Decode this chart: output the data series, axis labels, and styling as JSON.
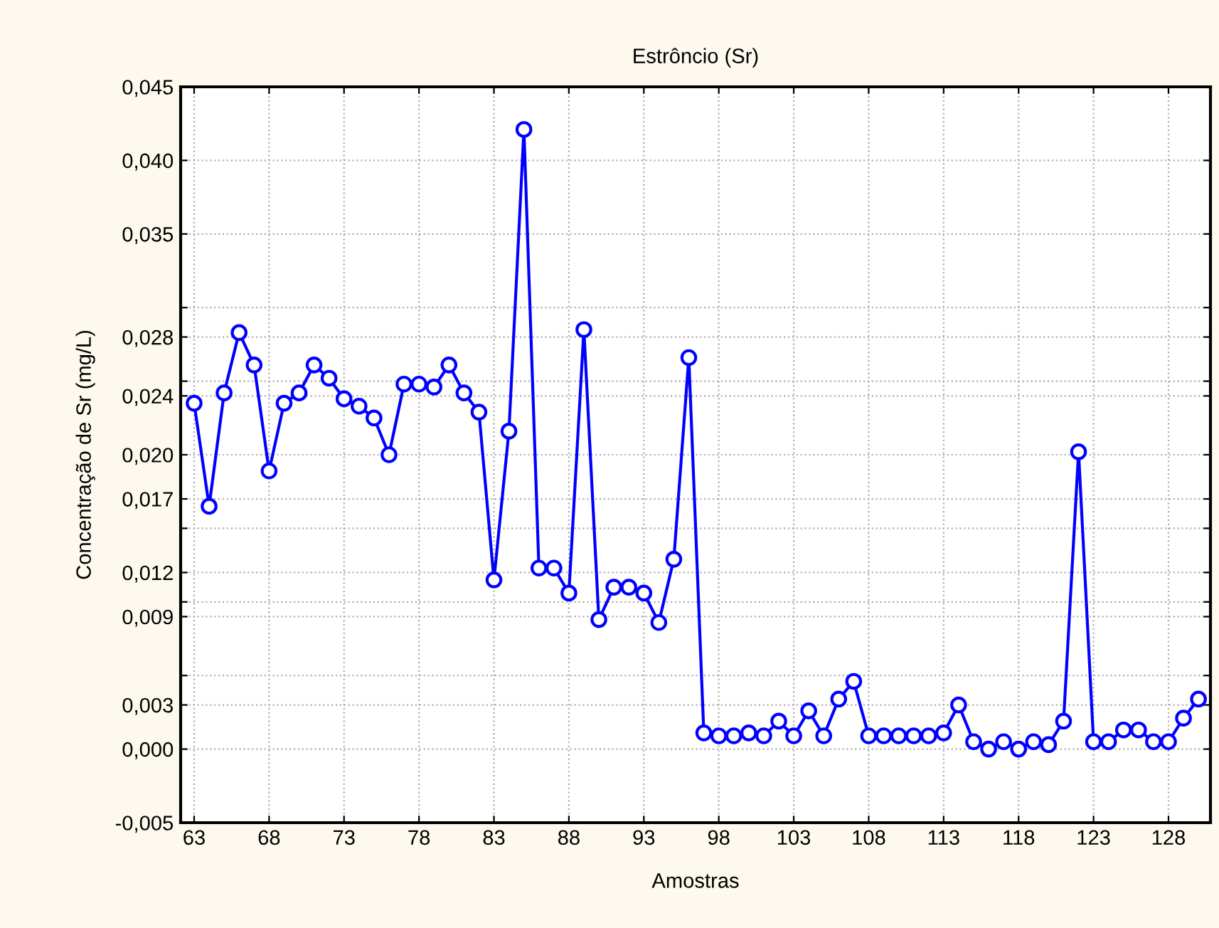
{
  "chart_data": {
    "type": "line",
    "title": "Estrôncio (Sr)",
    "xlabel": "Amostras",
    "ylabel": "Concentração de Sr (mg/L)",
    "x": [
      63,
      64,
      65,
      66,
      67,
      68,
      69,
      70,
      71,
      72,
      73,
      74,
      75,
      76,
      77,
      78,
      79,
      80,
      81,
      82,
      83,
      84,
      85,
      86,
      87,
      88,
      89,
      90,
      91,
      92,
      93,
      94,
      95,
      96,
      97,
      98,
      99,
      100,
      101,
      102,
      103,
      104,
      105,
      106,
      107,
      108,
      109,
      110,
      111,
      112,
      113,
      114,
      115,
      116,
      117,
      118,
      119,
      120,
      121,
      122,
      123,
      124,
      125,
      126,
      127,
      128,
      129,
      130
    ],
    "series": [
      {
        "color": "#0000ff",
        "values": [
          0.0235,
          0.0165,
          0.0242,
          0.0283,
          0.0261,
          0.0189,
          0.0235,
          0.0242,
          0.0261,
          0.0252,
          0.0238,
          0.0233,
          0.0225,
          0.02,
          0.0248,
          0.0248,
          0.0246,
          0.0261,
          0.0242,
          0.0229,
          0.0115,
          0.0216,
          0.0421,
          0.0123,
          0.0123,
          0.0106,
          0.0285,
          0.0088,
          0.011,
          0.011,
          0.0106,
          0.0086,
          0.0129,
          0.0266,
          0.0011,
          0.0009,
          0.0009,
          0.0011,
          0.0009,
          0.0019,
          0.0009,
          0.0026,
          0.0009,
          0.0034,
          0.0046,
          0.0009,
          0.0009,
          0.0009,
          0.0009,
          0.0009,
          0.0011,
          0.003,
          0.0005,
          0.0,
          0.0005,
          0.0,
          0.0005,
          0.0003,
          0.0019,
          0.0202,
          0.0005,
          0.0005,
          0.0013,
          0.0013,
          0.0005,
          0.0005,
          0.0021,
          0.0034
        ]
      }
    ],
    "xlim": [
      62.1,
      130.8
    ],
    "xticks": [
      63,
      68,
      73,
      78,
      83,
      88,
      93,
      98,
      103,
      108,
      113,
      118,
      123,
      128
    ],
    "ylim": [
      -0.005,
      0.045
    ],
    "yticks": [
      {
        "value": -0.005,
        "label": "-0,005"
      },
      {
        "value": 0,
        "label": "0,000"
      },
      {
        "value": 0.003,
        "label": "0,003"
      },
      {
        "value": 0.005,
        "label": null
      },
      {
        "value": 0.009,
        "label": "0,009"
      },
      {
        "value": 0.01,
        "label": null
      },
      {
        "value": 0.012,
        "label": "0,012"
      },
      {
        "value": 0.015,
        "label": null
      },
      {
        "value": 0.017,
        "label": "0,017"
      },
      {
        "value": 0.02,
        "label": "0,020"
      },
      {
        "value": 0.024,
        "label": "0,024"
      },
      {
        "value": 0.025,
        "label": null
      },
      {
        "value": 0.028,
        "label": "0,028"
      },
      {
        "value": 0.03,
        "label": null
      },
      {
        "value": 0.035,
        "label": "0,035"
      },
      {
        "value": 0.04,
        "label": "0,040"
      },
      {
        "value": 0.045,
        "label": "0,045"
      }
    ],
    "grid": true,
    "marker": "circle",
    "line_style": "solid"
  }
}
